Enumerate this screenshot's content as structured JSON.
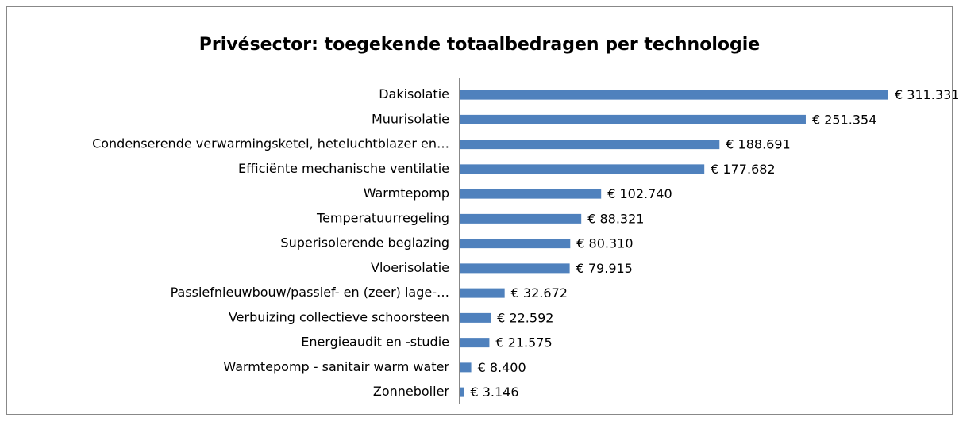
{
  "chart_data": {
    "type": "bar",
    "orientation": "horizontal",
    "title": "Privésector: toegekende totaalbedragen per technologie",
    "categories": [
      "Dakisolatie",
      "Muurisolatie",
      "Condenserende verwarmingsketel, heteluchtblazer en…",
      "Efficiënte mechanische ventilatie",
      "Warmtepomp",
      "Temperatuurregeling",
      "Superisolerende beglazing ",
      "Vloerisolatie",
      "Passiefnieuwbouw/passief- en (zeer) lage-…",
      "Verbuizing collectieve schoorsteen",
      "Energieaudit en -studie",
      "Warmtepomp - sanitair warm water",
      "Zonneboiler"
    ],
    "values": [
      311331,
      251354,
      188691,
      177682,
      102740,
      88321,
      80310,
      79915,
      32672,
      22592,
      21575,
      8400,
      3146
    ],
    "value_labels": [
      "€ 311.331",
      "€ 251.354",
      "€ 188.691",
      "€ 177.682",
      "€ 102.740",
      "€ 88.321",
      "€ 80.310",
      "€ 79.915",
      "€ 32.672",
      "€ 22.592",
      "€ 21.575",
      "€ 8.400",
      "€ 3.146"
    ],
    "color": "#4f81bd"
  }
}
